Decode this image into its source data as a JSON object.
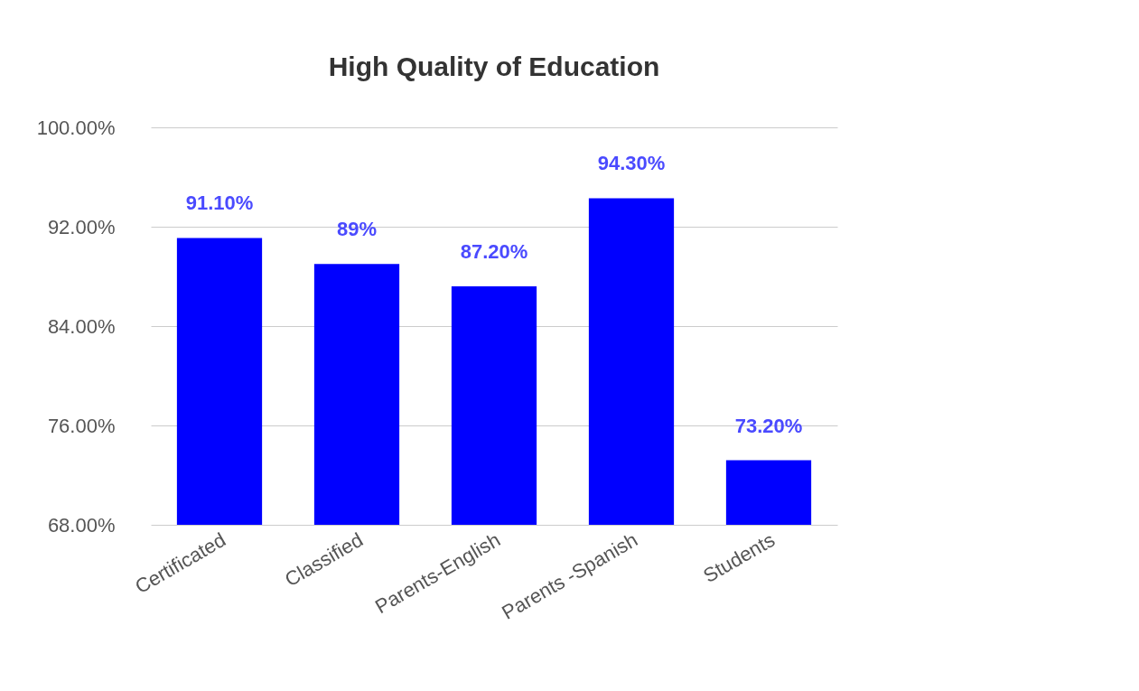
{
  "chart_data": {
    "type": "bar",
    "title": "High Quality of Education",
    "categories": [
      "Certificated",
      "Classified",
      "Parents-English",
      "Parents -Spanish",
      "Students"
    ],
    "values": [
      91.1,
      89,
      87.2,
      94.3,
      73.2
    ],
    "value_labels": [
      "91.10%",
      "89%",
      "87.20%",
      "94.30%",
      "73.20%"
    ],
    "color": "#0000ff",
    "ylim": [
      68,
      100
    ],
    "yticks": [
      {
        "value": 68,
        "label": "68.00%"
      },
      {
        "value": 76,
        "label": "76.00%"
      },
      {
        "value": 84,
        "label": "84.00%"
      },
      {
        "value": 92,
        "label": "92.00%"
      },
      {
        "value": 100,
        "label": "100.00%"
      }
    ],
    "grid": "y"
  }
}
